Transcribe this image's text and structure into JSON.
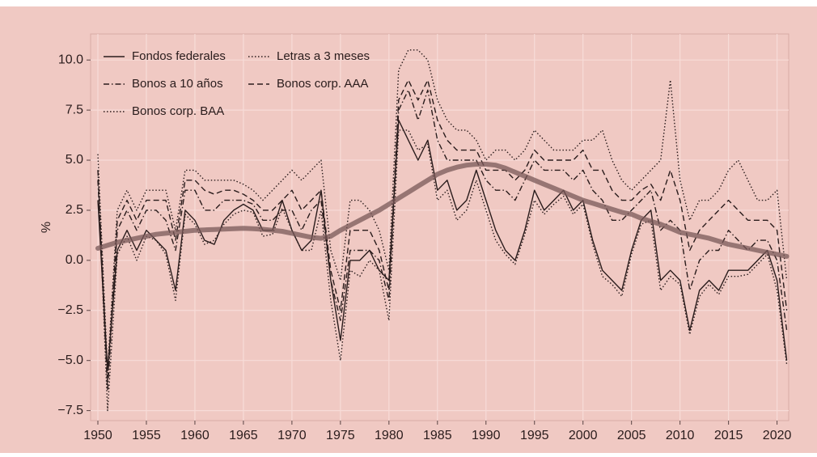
{
  "chart_data": {
    "type": "line",
    "y_label": "%",
    "x": [
      1950,
      1951,
      1952,
      1953,
      1954,
      1955,
      1956,
      1957,
      1958,
      1959,
      1960,
      1961,
      1962,
      1963,
      1964,
      1965,
      1966,
      1967,
      1968,
      1969,
      1970,
      1971,
      1972,
      1973,
      1974,
      1975,
      1976,
      1977,
      1978,
      1979,
      1980,
      1981,
      1982,
      1983,
      1984,
      1985,
      1986,
      1987,
      1988,
      1989,
      1990,
      1991,
      1992,
      1993,
      1994,
      1995,
      1996,
      1997,
      1998,
      1999,
      2000,
      2001,
      2002,
      2003,
      2004,
      2005,
      2006,
      2007,
      2008,
      2009,
      2010,
      2011,
      2012,
      2013,
      2014,
      2015,
      2016,
      2017,
      2018,
      2019,
      2020,
      2021
    ],
    "series": [
      {
        "name": "Fondos federales",
        "color": "#2a1c1c",
        "style": "solid",
        "values": [
          3.0,
          -5.5,
          0.5,
          1.5,
          0.5,
          1.5,
          1.0,
          0.5,
          -1.5,
          2.5,
          2.0,
          1.0,
          0.8,
          2.0,
          2.5,
          2.8,
          2.5,
          1.5,
          1.5,
          3.0,
          1.5,
          0.5,
          1.0,
          3.5,
          -1.0,
          -4.0,
          0.0,
          0.0,
          0.5,
          -0.5,
          -1.0,
          7.0,
          6.0,
          5.0,
          6.0,
          3.5,
          4.0,
          2.5,
          3.0,
          4.5,
          3.0,
          1.5,
          0.5,
          0.0,
          1.5,
          3.5,
          2.5,
          3.0,
          3.5,
          2.5,
          3.0,
          1.0,
          -0.5,
          -1.0,
          -1.5,
          0.5,
          2.0,
          2.5,
          -1.0,
          -0.5,
          -1.0,
          -3.5,
          -1.5,
          -1.0,
          -1.5,
          -0.5,
          -0.5,
          -0.5,
          0.0,
          0.5,
          -1.0,
          -5.0
        ]
      },
      {
        "name": "Letras a 3 meses",
        "color": "#2a1c1c",
        "style": "dotted",
        "values": [
          4.5,
          -7.5,
          0.3,
          1.2,
          0.0,
          1.2,
          1.0,
          0.3,
          -2.0,
          2.3,
          1.8,
          0.8,
          1.0,
          1.8,
          2.3,
          2.5,
          2.4,
          1.2,
          1.3,
          2.6,
          1.5,
          0.5,
          0.5,
          2.5,
          -2.0,
          -5.0,
          -0.5,
          -0.8,
          0.0,
          -0.5,
          -3.0,
          6.5,
          6.5,
          5.5,
          5.8,
          3.0,
          3.5,
          2.0,
          2.5,
          4.0,
          2.5,
          1.0,
          0.3,
          -0.2,
          1.3,
          3.0,
          2.3,
          2.8,
          3.2,
          2.3,
          2.8,
          0.8,
          -0.8,
          -1.2,
          -1.8,
          0.3,
          1.8,
          2.0,
          -1.5,
          -0.8,
          -1.2,
          -3.7,
          -1.8,
          -1.2,
          -1.7,
          -0.8,
          -0.8,
          -0.7,
          -0.2,
          0.3,
          -1.5,
          -5.2
        ]
      },
      {
        "name": "Bonos a 10 años",
        "color": "#2a1c1c",
        "style": "dashdot",
        "values": [
          4.0,
          -6.5,
          1.5,
          2.5,
          1.5,
          2.5,
          2.5,
          2.0,
          0.5,
          3.5,
          3.5,
          2.5,
          2.5,
          3.0,
          3.0,
          3.0,
          2.8,
          2.0,
          2.0,
          2.5,
          2.5,
          1.5,
          2.5,
          3.0,
          -1.0,
          -3.0,
          0.5,
          0.5,
          0.5,
          0.0,
          -2.0,
          7.5,
          8.5,
          7.0,
          8.5,
          6.0,
          5.0,
          5.0,
          5.0,
          5.0,
          4.0,
          3.5,
          3.5,
          3.0,
          4.0,
          5.0,
          4.5,
          4.5,
          4.5,
          4.0,
          4.5,
          3.5,
          3.0,
          2.0,
          2.0,
          2.5,
          3.0,
          3.5,
          1.5,
          2.0,
          1.5,
          -1.5,
          0.0,
          0.5,
          0.5,
          1.5,
          1.0,
          0.5,
          1.0,
          1.0,
          0.0,
          -3.5
        ]
      },
      {
        "name": "Bonos corp. AAA",
        "color": "#2a1c1c",
        "style": "dashed",
        "values": [
          4.5,
          -6.0,
          2.0,
          3.0,
          2.0,
          3.0,
          3.0,
          3.0,
          1.0,
          4.0,
          4.0,
          3.5,
          3.3,
          3.5,
          3.5,
          3.3,
          3.0,
          2.5,
          2.5,
          3.0,
          3.5,
          2.5,
          3.0,
          3.5,
          -0.5,
          -2.5,
          1.5,
          1.5,
          1.5,
          0.5,
          -1.5,
          8.0,
          9.0,
          8.0,
          9.0,
          7.0,
          6.0,
          5.5,
          5.5,
          5.5,
          4.5,
          4.5,
          4.5,
          4.0,
          4.5,
          5.5,
          5.0,
          5.0,
          5.0,
          5.0,
          5.5,
          4.5,
          4.5,
          3.5,
          3.0,
          3.0,
          3.5,
          3.8,
          3.0,
          4.5,
          3.0,
          0.5,
          1.5,
          2.0,
          2.5,
          3.0,
          2.5,
          2.0,
          2.0,
          2.0,
          1.5,
          -2.5
        ]
      },
      {
        "name": "Bonos corp. BAA",
        "color": "#2a1c1c",
        "style": "dotted",
        "values": [
          5.3,
          -5.5,
          2.5,
          3.5,
          2.5,
          3.5,
          3.5,
          3.5,
          1.5,
          4.5,
          4.5,
          4.0,
          4.0,
          4.0,
          4.0,
          3.8,
          3.5,
          3.0,
          3.5,
          4.0,
          4.5,
          4.0,
          4.5,
          5.0,
          0.5,
          -1.0,
          3.0,
          3.0,
          2.5,
          1.5,
          -0.5,
          9.5,
          10.5,
          10.5,
          10.0,
          8.0,
          7.0,
          6.5,
          6.5,
          6.0,
          5.0,
          5.5,
          5.5,
          5.0,
          5.5,
          6.5,
          6.0,
          5.5,
          5.5,
          5.5,
          6.0,
          6.0,
          6.5,
          5.0,
          4.0,
          3.5,
          4.0,
          4.5,
          5.0,
          9.0,
          4.0,
          2.0,
          3.0,
          3.0,
          3.5,
          4.5,
          5.0,
          4.0,
          3.0,
          3.0,
          3.5,
          -1.0
        ]
      },
      {
        "color": "#7a5858",
        "style": "trend",
        "values": [
          0.6,
          0.75,
          0.9,
          1.0,
          1.1,
          1.2,
          1.3,
          1.35,
          1.4,
          1.45,
          1.5,
          1.52,
          1.54,
          1.56,
          1.58,
          1.6,
          1.58,
          1.55,
          1.5,
          1.45,
          1.35,
          1.25,
          1.15,
          1.1,
          1.2,
          1.5,
          1.75,
          2.0,
          2.25,
          2.5,
          2.8,
          3.1,
          3.4,
          3.7,
          4.0,
          4.3,
          4.5,
          4.65,
          4.75,
          4.8,
          4.8,
          4.75,
          4.6,
          4.4,
          4.2,
          4.0,
          3.8,
          3.6,
          3.4,
          3.2,
          3.0,
          2.85,
          2.7,
          2.55,
          2.4,
          2.3,
          2.1,
          1.95,
          1.8,
          1.6,
          1.4,
          1.3,
          1.2,
          1.1,
          0.95,
          0.8,
          0.7,
          0.6,
          0.5,
          0.4,
          0.3,
          0.2
        ]
      }
    ],
    "xlim": [
      1949.25,
      2021.2
    ],
    "xticks": [
      1950,
      1955,
      1960,
      1965,
      1970,
      1975,
      1980,
      1985,
      1990,
      1995,
      2000,
      2005,
      2010,
      2015,
      2020
    ],
    "ylim": [
      -8,
      11.3
    ],
    "yticks": [
      {
        "value": -7.5,
        "label": "−7.5"
      },
      {
        "value": -5,
        "label": "−5.0"
      },
      {
        "value": -2.5,
        "label": "−2.5"
      },
      {
        "value": 0,
        "label": "0.0"
      },
      2.5,
      {
        "value": 5,
        "label": "5.0"
      },
      7.5,
      {
        "value": 10,
        "label": "10.0"
      }
    ],
    "grid": true,
    "legend": "top-left",
    "background": "#f0c9c3"
  }
}
